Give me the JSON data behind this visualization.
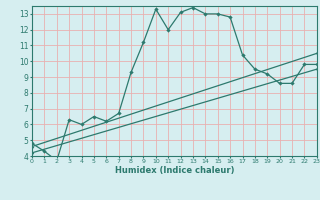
{
  "title": "",
  "xlabel": "Humidex (Indice chaleur)",
  "xlim": [
    0,
    23
  ],
  "ylim": [
    4,
    13.5
  ],
  "yticks": [
    4,
    5,
    6,
    7,
    8,
    9,
    10,
    11,
    12,
    13
  ],
  "xticks": [
    0,
    1,
    2,
    3,
    4,
    5,
    6,
    7,
    8,
    9,
    10,
    11,
    12,
    13,
    14,
    15,
    16,
    17,
    18,
    19,
    20,
    21,
    22,
    23
  ],
  "bg_color": "#d6eef0",
  "grid_color": "#e8b0b0",
  "line_color": "#2d7a6e",
  "line1_x": [
    0,
    1,
    2,
    3,
    4,
    5,
    6,
    7,
    8,
    9,
    10,
    11,
    12,
    13,
    14,
    15,
    16,
    17,
    18,
    19,
    20,
    21,
    22,
    23
  ],
  "line1_y": [
    4.8,
    4.3,
    3.7,
    6.3,
    6.0,
    6.5,
    6.2,
    6.7,
    9.3,
    11.2,
    13.3,
    12.0,
    13.1,
    13.4,
    13.0,
    13.0,
    12.8,
    10.4,
    9.5,
    9.2,
    8.6,
    8.6,
    9.8,
    9.8
  ],
  "line2_x": [
    0,
    23
  ],
  "line2_y": [
    4.2,
    9.5
  ],
  "line3_x": [
    0,
    23
  ],
  "line3_y": [
    4.6,
    10.5
  ]
}
